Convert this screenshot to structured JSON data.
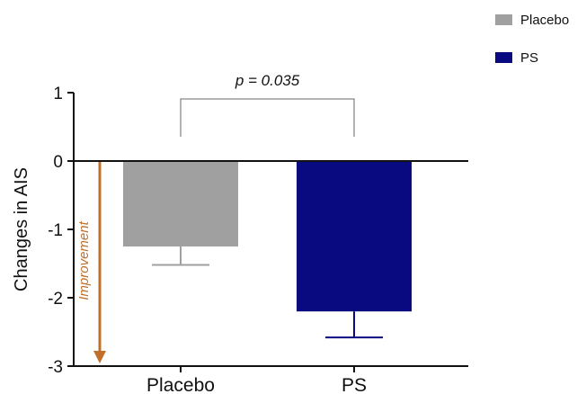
{
  "chart_data": {
    "type": "bar",
    "categories": [
      "Placebo",
      "PS"
    ],
    "series": [
      {
        "name": "Placebo",
        "value": -1.25,
        "error": 0.27,
        "color": "#a0a0a0"
      },
      {
        "name": "PS",
        "value": -2.2,
        "error": 0.38,
        "color": "#0a0a80"
      }
    ],
    "ylabel": "Changes in AIS",
    "ylim": [
      -3,
      1
    ],
    "yticks": [
      1,
      0,
      -1,
      -2,
      -3
    ],
    "legend_position": "top-right",
    "annotations": {
      "significance": "p = 0.035",
      "direction": "Improvement",
      "direction_color": "#c0702a"
    }
  }
}
